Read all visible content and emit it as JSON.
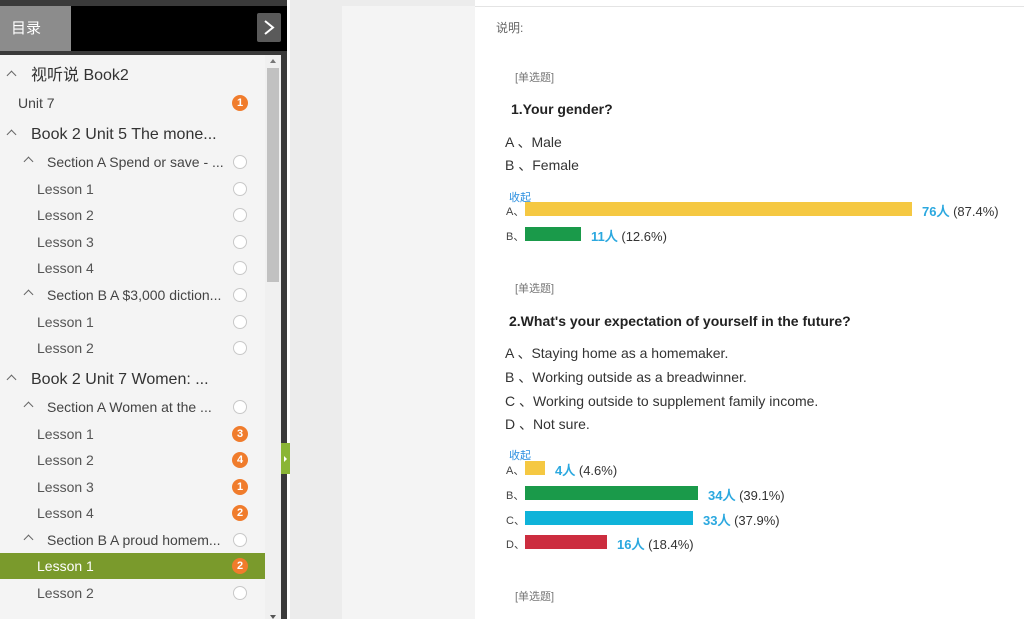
{
  "sidebar": {
    "tab_label": "目录",
    "items": [
      {
        "label": "视听说 Book2",
        "level": 0,
        "caret": true
      },
      {
        "label": "Unit 7",
        "level": "plain",
        "badge": "1"
      },
      {
        "label": "Book 2 Unit 5 The mone...",
        "level": 0,
        "caret": true
      },
      {
        "label": "Section A Spend or save - ...",
        "level": 1,
        "caret": true,
        "ring": true
      },
      {
        "label": "Lesson 1",
        "level": 2,
        "ring": true
      },
      {
        "label": "Lesson 2",
        "level": 2,
        "ring": true
      },
      {
        "label": "Lesson 3",
        "level": 2,
        "ring": true
      },
      {
        "label": "Lesson 4",
        "level": 2,
        "ring": true
      },
      {
        "label": "Section B A $3,000 diction...",
        "level": 1,
        "caret": true,
        "ring": true
      },
      {
        "label": "Lesson 1",
        "level": 2,
        "ring": true
      },
      {
        "label": "Lesson 2",
        "level": 2,
        "ring": true
      },
      {
        "label": "Book 2 Unit 7 Women: ...",
        "level": 0,
        "caret": true
      },
      {
        "label": "Section A Women at the ...",
        "level": 1,
        "caret": true,
        "ring": true
      },
      {
        "label": "Lesson 1",
        "level": 2,
        "badge": "3"
      },
      {
        "label": "Lesson 2",
        "level": 2,
        "badge": "4"
      },
      {
        "label": "Lesson 3",
        "level": 2,
        "badge": "1"
      },
      {
        "label": "Lesson 4",
        "level": 2,
        "badge": "2"
      },
      {
        "label": "Section B A proud homem...",
        "level": 1,
        "caret": true,
        "ring": true
      },
      {
        "label": "Lesson 1",
        "level": 2,
        "badge": "2",
        "active": true
      },
      {
        "label": "Lesson 2",
        "level": 2,
        "ring": true
      }
    ]
  },
  "main": {
    "note_label": "说明:",
    "collapse_label": "收起",
    "questions": [
      {
        "type": "[单选题]",
        "title": "1.Your gender?",
        "options": [
          "A 、Male",
          "B 、Female"
        ],
        "results": [
          {
            "letter": "A、",
            "count": "76人",
            "pct": "(87.4%)",
            "share": 87.4,
            "color": "#f5c842"
          },
          {
            "letter": "B、",
            "count": "11人",
            "pct": "(12.6%)",
            "share": 12.6,
            "color": "#1a9a4a"
          }
        ]
      },
      {
        "type": "[单选题]",
        "title": "2.What's your expectation of yourself in the future?",
        "options": [
          "A 、Staying home as a homemaker.",
          "B 、Working outside as a breadwinner.",
          "C 、Working outside to supplement family income.",
          "D 、Not sure."
        ],
        "results": [
          {
            "letter": "A、",
            "count": "4人",
            "pct": "(4.6%)",
            "share": 4.6,
            "color": "#f5c842"
          },
          {
            "letter": "B、",
            "count": "34人",
            "pct": "(39.1%)",
            "share": 39.1,
            "color": "#1a9a4a"
          },
          {
            "letter": "C、",
            "count": "33人",
            "pct": "(37.9%)",
            "share": 37.9,
            "color": "#0fb3d9"
          },
          {
            "letter": "D、",
            "count": "16人",
            "pct": "(18.4%)",
            "share": 18.4,
            "color": "#cc2d3f"
          }
        ]
      },
      {
        "type": "[单选题]"
      }
    ]
  }
}
